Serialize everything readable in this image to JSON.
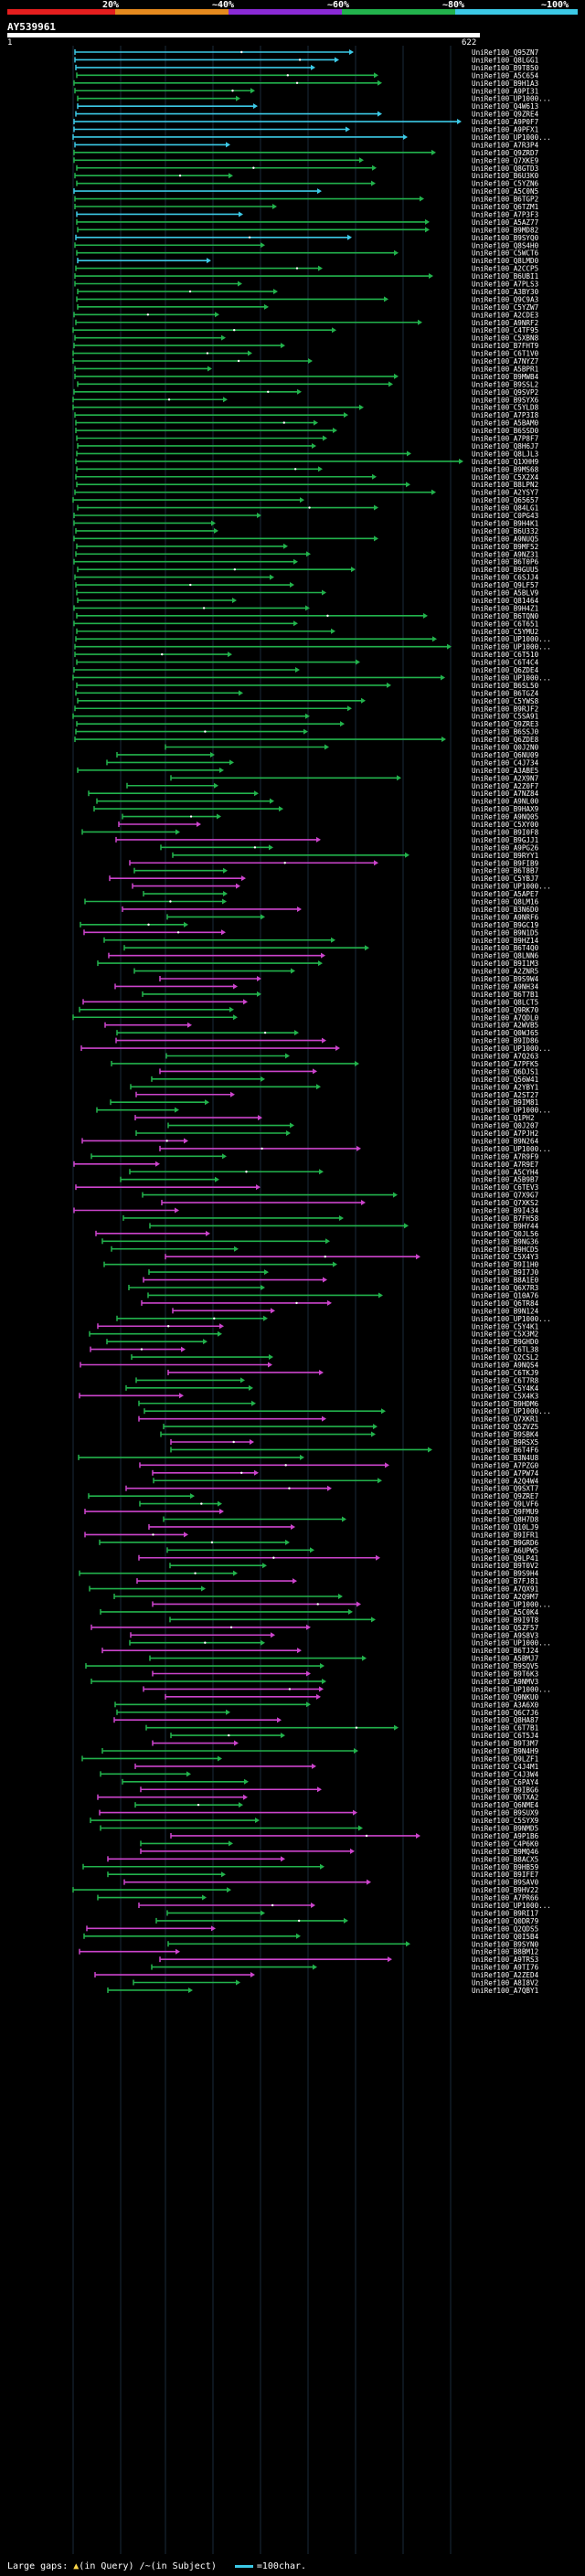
{
  "scale": {
    "labels": [
      "20%",
      "~40%",
      "~60%",
      "~80%",
      "~100%"
    ],
    "colors": [
      "#e51e1e",
      "#e58a1e",
      "#8a2ad6",
      "#22b24c",
      "#3cc9e6"
    ]
  },
  "query": {
    "title": "AY539961",
    "start": "1",
    "end": "622"
  },
  "legend": {
    "gaps_label": "Large gaps:",
    "query_gap": "(in Query)",
    "subject_gap": "(in Subject)",
    "scale_label": "=100char."
  },
  "colors": {
    "identity_100": "#3cc9e6",
    "identity_80": "#22b24c",
    "identity_60": "#cc44cc",
    "background": "#000000",
    "grid": "#1a2a3a"
  },
  "hits": [
    "UniRef100_Q95ZN7",
    "UniRef100_Q8LGG1",
    "UniRef100_B9T850",
    "UniRef100_A5C654",
    "UniRef100_B9H1A3",
    "UniRef100_A9PI31",
    "UniRef100_UP1000...",
    "UniRef100_Q4W613",
    "UniRef100_Q9ZRE4",
    "UniRef100_A9P0F7",
    "UniRef100_A9PFX1",
    "UniRef100_UP1000...",
    "UniRef100_A7R3P4",
    "UniRef100_Q9ZRD7",
    "UniRef100_Q7XKE9",
    "UniRef100_Q8GTD3",
    "UniRef100_B6U3K0",
    "UniRef100_C5YZN6",
    "UniRef100_A5C0N5",
    "UniRef100_B6TGP2",
    "UniRef100_Q6TZM1",
    "UniRef100_A7P3F3",
    "UniRef100_A5AZ77",
    "UniRef100_B9MD82",
    "UniRef100_B9SYQ0",
    "UniRef100_Q8S4H0",
    "UniRef100_C5WCT6",
    "UniRef100_Q8LMD0",
    "UniRef100_A2CCP5",
    "UniRef100_B6UBI1",
    "UniRef100_A7PLS3",
    "UniRef100_A3BY30",
    "UniRef100_Q9C9A3",
    "UniRef100_C5YZW7",
    "UniRef100_A2CDE3",
    "UniRef100_A9NRF2",
    "UniRef100_C4TF95",
    "UniRef100_C5XBN8",
    "UniRef100_B7FHT9",
    "UniRef100_C6T1V0",
    "UniRef100_A7NYZ7",
    "UniRef100_A5BPR1",
    "UniRef100_B9MWB4",
    "UniRef100_B9SSL2",
    "UniRef100_Q9SVP2",
    "UniRef100_B9SYX6",
    "UniRef100_C5YLD8",
    "UniRef100_A7P3I8",
    "UniRef100_A5BAM0",
    "UniRef100_B6SSD0",
    "UniRef100_A7P8F7",
    "UniRef100_Q8H6J7",
    "UniRef100_Q8LJL3",
    "UniRef100_Q1XHH9",
    "UniRef100_B9MS68",
    "UniRef100_C5X2X4",
    "UniRef100_B8LPN2",
    "UniRef100_A2YSY7",
    "UniRef100_Q65657",
    "UniRef100_Q84LG1",
    "UniRef100_C0PG43",
    "UniRef100_B9H4K1",
    "UniRef100_B6U332",
    "UniRef100_A9NUQ5",
    "UniRef100_B9MF52",
    "UniRef100_A9NZ31",
    "UniRef100_B6T0P6",
    "UniRef100_B9GUU5",
    "UniRef100_C6SJJ4",
    "UniRef100_Q9LF57",
    "UniRef100_A5BLV9",
    "UniRef100_Q81464",
    "UniRef100_B9H4Z1",
    "UniRef100_B6TQN0",
    "UniRef100_C6T651",
    "UniRef100_C5YMU2",
    "UniRef100_UP1000...",
    "UniRef100_UP1000...",
    "UniRef100_C6T510",
    "UniRef100_C6T4C4",
    "UniRef100_Q6ZDE4",
    "UniRef100_UP1000...",
    "UniRef100_B6SL50",
    "UniRef100_B6TGZ4",
    "UniRef100_C5YWS8",
    "UniRef100_B9RJF2",
    "UniRef100_C5SA91",
    "UniRef100_Q9ZRE3",
    "UniRef100_B6SSJ0",
    "UniRef100_Q6ZDE8",
    "UniRef100_Q0J2N0",
    "UniRef100_Q6NU09",
    "UniRef100_C4J734",
    "UniRef100_A3ABE5",
    "UniRef100_A2X9N7",
    "UniRef100_A2Z0F7",
    "UniRef100_A7NZ84",
    "UniRef100_A9NL00",
    "UniRef100_B9HAX9",
    "UniRef100_A9NQ05",
    "UniRef100_C5XY00",
    "UniRef100_B9I0F8",
    "UniRef100_B9GJJ1",
    "UniRef100_A9PG26",
    "UniRef100_B9RYY1",
    "UniRef100_B9FIB9",
    "UniRef100_B6T8B7",
    "UniRef100_C5YBJ7",
    "UniRef100_UP1000...",
    "UniRef100_A5APE7",
    "UniRef100_Q8LM16",
    "UniRef100_B3N6D0",
    "UniRef100_A9NRF6",
    "UniRef100_B9GC19",
    "UniRef100_B9N1D5",
    "UniRef100_B9HZ14",
    "UniRef100_B6T4Q0",
    "UniRef100_Q8LNN6",
    "UniRef100_B9I1M3",
    "UniRef100_A2ZNR5",
    "UniRef100_B9S9W4",
    "UniRef100_A9NH34",
    "UniRef100_B6T7B1",
    "UniRef100_Q8LCT5",
    "UniRef100_Q9RK70",
    "UniRef100_A7QDL0",
    "UniRef100_A2WVB5",
    "UniRef100_Q0WJ65",
    "UniRef100_B9ID86",
    "UniRef100_UP1000...",
    "UniRef100_A7Q263",
    "UniRef100_A7PFK5",
    "UniRef100_Q6DJS1",
    "UniRef100_Q56W41",
    "UniRef100_A2YBY1",
    "UniRef100_A2ST27",
    "UniRef100_B9IM81",
    "UniRef100_UP1000...",
    "UniRef100_Q1PH2",
    "UniRef100_Q0J207",
    "UniRef100_A7PJH2",
    "UniRef100_B9N264",
    "UniRef100_UP1000...",
    "UniRef100_A7R9F9",
    "UniRef100_A7R9E7",
    "UniRef100_A5CYH4",
    "UniRef100_A5B9B7",
    "UniRef100_C6TEV3",
    "UniRef100_Q7X9G7",
    "UniRef100_Q7XKS2",
    "UniRef100_B9I434",
    "UniRef100_B7FH58",
    "UniRef100_B9HY44",
    "UniRef100_Q0JL56",
    "UniRef100_B9NG36",
    "UniRef100_B9HCD5",
    "UniRef100_C5X4Y3",
    "UniRef100_B9I1H0",
    "UniRef100_B9I7J0",
    "UniRef100_B8A1E0",
    "UniRef100_Q6X7R3",
    "UniRef100_Q10A76",
    "UniRef100_Q6TR84",
    "UniRef100_B9N124",
    "UniRef100_UP1000...",
    "UniRef100_C5Y4K1",
    "UniRef100_C5X3M2",
    "UniRef100_B9GHD0",
    "UniRef100_C6TL38",
    "UniRef100_Q2CSL2",
    "UniRef100_A9NQS4",
    "UniRef100_C6TKJ9",
    "UniRef100_C6T7R8",
    "UniRef100_C5Y4K4",
    "UniRef100_C5X4K3",
    "UniRef100_B9HDM6",
    "UniRef100_UP1000...",
    "UniRef100_Q7XKR1",
    "UniRef100_Q5ZVZ5",
    "UniRef100_B9SBK4",
    "UniRef100_B9RSX5",
    "UniRef100_B6T4F6",
    "UniRef100_B3N4U8",
    "UniRef100_A7PZG0",
    "UniRef100_A7PW74",
    "UniRef100_A2Q4W4",
    "UniRef100_Q9SXT7",
    "UniRef100_Q9ZRE7",
    "UniRef100_Q9LVF6",
    "UniRef100_Q9FMU9",
    "UniRef100_Q8H7D8",
    "UniRef100_Q10LJ9",
    "UniRef100_B9IFR1",
    "UniRef100_B9GRD6",
    "UniRef100_A6UPW5",
    "UniRef100_Q9LP41",
    "UniRef100_B9T0V2",
    "UniRef100_B9S9H4",
    "UniRef100_B7FJ81",
    "UniRef100_A7QX91",
    "UniRef100_A2Q9M7",
    "UniRef100_UP1000...",
    "UniRef100_A5C0K4",
    "UniRef100_B9I9T8",
    "UniRef100_Q5ZF57",
    "UniRef100_A9S8V3",
    "UniRef100_UP1000...",
    "UniRef100_B6TJ24",
    "UniRef100_A5BMJ7",
    "UniRef100_B9SQV5",
    "UniRef100_B9T6K3",
    "UniRef100_A9NMV3",
    "UniRef100_UP1000...",
    "UniRef100_Q9NKU0",
    "UniRef100_A3A6X0",
    "UniRef100_Q6C7J6",
    "UniRef100_Q8HA87",
    "UniRef100_C6T7B1",
    "UniRef100_C6T5J4",
    "UniRef100_B9T3M7",
    "UniRef100_B9N4H9",
    "UniRef100_Q9LZF1",
    "UniRef100_C4J4M1",
    "UniRef100_C4J3W4",
    "UniRef100_C6PAY4",
    "UniRef100_B9IBG6",
    "UniRef100_Q6TXA2",
    "UniRef100_Q6NME4",
    "UniRef100_B9SUX9",
    "UniRef100_C5SYX9",
    "UniRef100_B9NMD5",
    "UniRef100_A9P1B6",
    "UniRef100_C4P6K0",
    "UniRef100_B9MQ46",
    "UniRef100_B8ACX5",
    "UniRef100_B9HB59",
    "UniRef100_B9IFE7",
    "UniRef100_B9SAV0",
    "UniRef100_B9HV22",
    "UniRef100_A7PR66",
    "UniRef100_UP1000...",
    "UniRef100_B9RI17",
    "UniRef100_Q0DR79",
    "UniRef100_Q2QDS5",
    "UniRef100_Q0I5B4",
    "UniRef100_B9SYN0",
    "UniRef100_B8BM12",
    "UniRef100_A9TRS3",
    "UniRef100_A9TI76",
    "UniRef100_A2ZED4",
    "UniRef100_A8I8V2",
    "UniRef100_A7QBY1"
  ]
}
